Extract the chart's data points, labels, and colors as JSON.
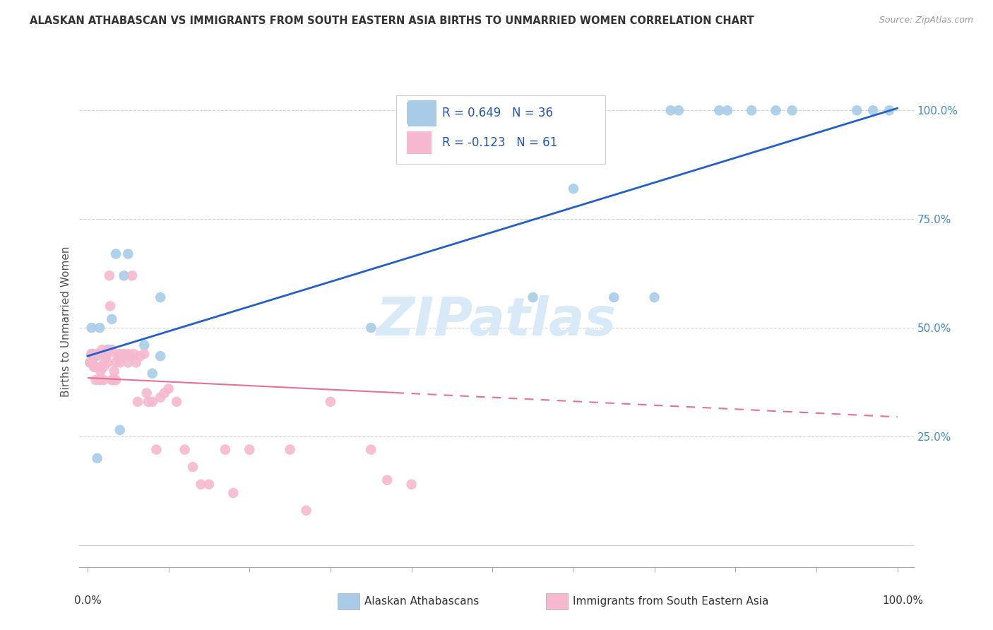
{
  "title": "ALASKAN ATHABASCAN VS IMMIGRANTS FROM SOUTH EASTERN ASIA BIRTHS TO UNMARRIED WOMEN CORRELATION CHART",
  "source": "Source: ZipAtlas.com",
  "ylabel": "Births to Unmarried Women",
  "legend_blue_text": "R = 0.649   N = 36",
  "legend_pink_text": "R = -0.123   N = 61",
  "legend_label_blue": "Alaskan Athabascans",
  "legend_label_pink": "Immigrants from South Eastern Asia",
  "blue_color": "#a8cce8",
  "pink_color": "#f5b8cf",
  "blue_line_color": "#2060c8",
  "pink_line_color": "#e87090",
  "watermark_color": "#d8eaf8",
  "watermark": "ZIPatlas",
  "blue_R": 0.649,
  "pink_R": -0.123,
  "blue_intercept": 0.435,
  "blue_slope": 0.57,
  "pink_intercept": 0.385,
  "pink_slope": -0.09,
  "blue_points_x": [
    0.003,
    0.005,
    0.005,
    0.006,
    0.007,
    0.008,
    0.01,
    0.01,
    0.012,
    0.015,
    0.02,
    0.025,
    0.03,
    0.035,
    0.04,
    0.045,
    0.05,
    0.07,
    0.08,
    0.09,
    0.09,
    0.35,
    0.55,
    0.6,
    0.65,
    0.7,
    0.72,
    0.73,
    0.78,
    0.79,
    0.82,
    0.85,
    0.87,
    0.95,
    0.97,
    0.99
  ],
  "blue_points_y": [
    0.42,
    0.5,
    0.44,
    0.44,
    0.435,
    0.435,
    0.435,
    0.435,
    0.2,
    0.5,
    0.44,
    0.45,
    0.52,
    0.67,
    0.265,
    0.62,
    0.67,
    0.46,
    0.395,
    0.57,
    0.435,
    0.5,
    0.57,
    0.82,
    0.57,
    0.57,
    1.0,
    1.0,
    1.0,
    1.0,
    1.0,
    1.0,
    1.0,
    1.0,
    1.0,
    1.0
  ],
  "pink_points_x": [
    0.003,
    0.005,
    0.006,
    0.008,
    0.009,
    0.01,
    0.011,
    0.012,
    0.013,
    0.015,
    0.016,
    0.018,
    0.02,
    0.02,
    0.02,
    0.022,
    0.025,
    0.025,
    0.027,
    0.028,
    0.03,
    0.03,
    0.032,
    0.033,
    0.035,
    0.035,
    0.037,
    0.04,
    0.04,
    0.042,
    0.045,
    0.05,
    0.05,
    0.052,
    0.055,
    0.057,
    0.06,
    0.062,
    0.065,
    0.07,
    0.073,
    0.075,
    0.08,
    0.085,
    0.09,
    0.095,
    0.1,
    0.11,
    0.12,
    0.13,
    0.14,
    0.15,
    0.17,
    0.18,
    0.2,
    0.25,
    0.27,
    0.3,
    0.35,
    0.37,
    0.4
  ],
  "pink_points_y": [
    0.42,
    0.44,
    0.42,
    0.41,
    0.41,
    0.38,
    0.41,
    0.44,
    0.44,
    0.38,
    0.4,
    0.45,
    0.38,
    0.42,
    0.41,
    0.435,
    0.42,
    0.44,
    0.62,
    0.55,
    0.45,
    0.38,
    0.38,
    0.4,
    0.42,
    0.38,
    0.435,
    0.42,
    0.44,
    0.435,
    0.44,
    0.42,
    0.44,
    0.435,
    0.62,
    0.44,
    0.42,
    0.33,
    0.435,
    0.44,
    0.35,
    0.33,
    0.33,
    0.22,
    0.34,
    0.35,
    0.36,
    0.33,
    0.22,
    0.18,
    0.14,
    0.14,
    0.22,
    0.12,
    0.22,
    0.22,
    0.08,
    0.33,
    0.22,
    0.15,
    0.14
  ]
}
